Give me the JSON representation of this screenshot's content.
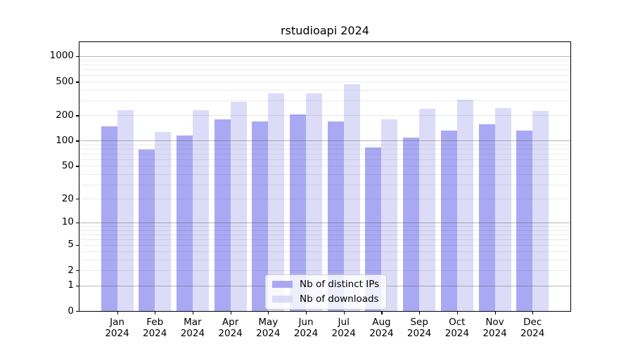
{
  "chart_data": {
    "type": "bar",
    "title": "rstudioapi 2024",
    "scale": "log10(1+y)",
    "categories": [
      "Jan",
      "Feb",
      "Mar",
      "Apr",
      "May",
      "Jun",
      "Jul",
      "Aug",
      "Sep",
      "Oct",
      "Nov",
      "Dec"
    ],
    "year": "2024",
    "series": [
      {
        "name": "Nb of distinct IPs",
        "color": "#a9a9f3",
        "values": [
          148,
          78,
          115,
          179,
          170,
          206,
          170,
          84,
          109,
          132,
          157,
          132
        ]
      },
      {
        "name": "Nb of downloads",
        "color": "#dcdcf9",
        "values": [
          229,
          127,
          229,
          292,
          362,
          362,
          469,
          179,
          241,
          305,
          244,
          224
        ]
      }
    ],
    "yticks": [
      0,
      1,
      2,
      5,
      10,
      20,
      50,
      100,
      200,
      500,
      1000
    ],
    "ylim": [
      0,
      1400
    ],
    "grid": "horizontal; major at 1,10,100,1000; minor at 2-9 multiples",
    "legend_position": "bottom-center"
  }
}
